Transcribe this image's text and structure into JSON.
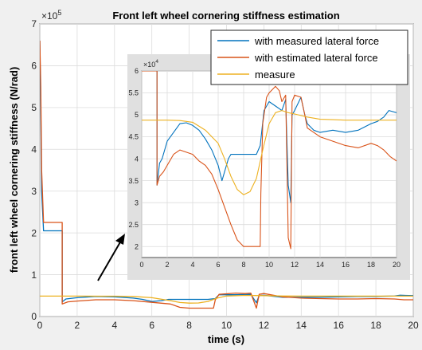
{
  "chart_data": [
    {
      "type": "line",
      "title": "Front left wheel cornering stiffness estimation",
      "xlabel": "time (s)",
      "ylabel": "front left wheel cornering stiffness (N/rad)",
      "xlim": [
        0,
        20
      ],
      "ylim": [
        0,
        700000
      ],
      "y_exponent_label": "×10^5",
      "x_ticks": [
        "0",
        "2",
        "4",
        "6",
        "8",
        "10",
        "12",
        "14",
        "16",
        "18",
        "20"
      ],
      "y_ticks": [
        "0",
        "1",
        "2",
        "3",
        "4",
        "5",
        "6",
        "7"
      ],
      "grid": true,
      "legend_position": "top-right",
      "series": [
        {
          "name": "with measured lateral force",
          "color": "#0072bd",
          "points": [
            [
              0,
              660000
            ],
            [
              0.05,
              500000
            ],
            [
              0.1,
              300000
            ],
            [
              0.2,
              205000
            ],
            [
              1.2,
              205000
            ],
            [
              1.2,
              35000
            ],
            [
              1.4,
              42000
            ],
            [
              2,
              45000
            ],
            [
              3,
              48000
            ],
            [
              4,
              47000
            ],
            [
              5,
              44000
            ],
            [
              5.5,
              41000
            ],
            [
              6,
              36000
            ],
            [
              6.5,
              38000
            ],
            [
              6.9,
              41000
            ],
            [
              7.2,
              41000
            ],
            [
              9,
              41000
            ],
            [
              9.4,
              43000
            ],
            [
              9.6,
              52000
            ],
            [
              10.5,
              52000
            ],
            [
              11.3,
              53000
            ],
            [
              11.6,
              33000
            ],
            [
              11.75,
              50000
            ],
            [
              12,
              51000
            ],
            [
              13,
              46000
            ],
            [
              14,
              46000
            ],
            [
              15,
              46000
            ],
            [
              16,
              47000
            ],
            [
              17,
              48000
            ],
            [
              18,
              48000
            ],
            [
              19,
              49000
            ],
            [
              19.3,
              51000
            ],
            [
              20,
              50000
            ]
          ]
        },
        {
          "name": "with estimated lateral force",
          "color": "#d95319",
          "points": [
            [
              0,
              660000
            ],
            [
              0.05,
              550000
            ],
            [
              0.1,
              350000
            ],
            [
              0.2,
              225000
            ],
            [
              1.2,
              225000
            ],
            [
              1.2,
              30000
            ],
            [
              1.5,
              35000
            ],
            [
              2,
              37000
            ],
            [
              3,
              40000
            ],
            [
              4,
              40000
            ],
            [
              5,
              38000
            ],
            [
              6,
              34000
            ],
            [
              7,
              30000
            ],
            [
              7.5,
              22000
            ],
            [
              8,
              20000
            ],
            [
              9.3,
              20000
            ],
            [
              9.4,
              40000
            ],
            [
              9.6,
              53000
            ],
            [
              10.5,
              56000
            ],
            [
              11,
              55000
            ],
            [
              11.3,
              56000
            ],
            [
              11.6,
              20000
            ],
            [
              11.75,
              53000
            ],
            [
              12,
              55000
            ],
            [
              13,
              47000
            ],
            [
              14,
              44000
            ],
            [
              15,
              43000
            ],
            [
              16,
              42000
            ],
            [
              17,
              42000
            ],
            [
              18,
              43000
            ],
            [
              19,
              42000
            ],
            [
              19.5,
              40000
            ],
            [
              20,
              40000
            ]
          ]
        },
        {
          "name": "measure",
          "color": "#edb120",
          "points": [
            [
              0,
              48800
            ],
            [
              2,
              48800
            ],
            [
              4,
              48600
            ],
            [
              5,
              48000
            ],
            [
              6,
              45000
            ],
            [
              7,
              38000
            ],
            [
              7.5,
              33500
            ],
            [
              8,
              32000
            ],
            [
              8.5,
              32500
            ],
            [
              9,
              36000
            ],
            [
              9.5,
              44000
            ],
            [
              10,
              49000
            ],
            [
              11,
              50500
            ],
            [
              12,
              50000
            ],
            [
              13,
              49000
            ],
            [
              14,
              48800
            ],
            [
              16,
              48800
            ],
            [
              18,
              48800
            ],
            [
              20,
              48800
            ]
          ]
        }
      ]
    },
    {
      "type": "line",
      "title": "",
      "xlim": [
        0,
        20
      ],
      "ylim": [
        17500,
        60000
      ],
      "y_exponent_label": "×10^4",
      "x_ticks": [
        "0",
        "2",
        "4",
        "6",
        "8",
        "10",
        "12",
        "14",
        "16",
        "18",
        "20"
      ],
      "y_ticks": [
        "2",
        "2.5",
        "3",
        "3.5",
        "4",
        "4.5",
        "5",
        "5.5",
        "6"
      ],
      "series": [
        {
          "color": "#0072bd",
          "points": [
            [
              0,
              60000
            ],
            [
              1.2,
              60000
            ],
            [
              1.2,
              34000
            ],
            [
              1.4,
              39000
            ],
            [
              1.6,
              40000
            ],
            [
              2,
              44000
            ],
            [
              2.5,
              46000
            ],
            [
              3,
              48000
            ],
            [
              3.5,
              48200
            ],
            [
              4,
              47600
            ],
            [
              4.5,
              46500
            ],
            [
              5,
              44500
            ],
            [
              5.5,
              42000
            ],
            [
              6,
              38500
            ],
            [
              6.3,
              35000
            ],
            [
              6.5,
              37000
            ],
            [
              6.8,
              40000
            ],
            [
              7,
              41000
            ],
            [
              9,
              41000
            ],
            [
              9.3,
              43000
            ],
            [
              9.6,
              51000
            ],
            [
              10,
              53000
            ],
            [
              10.5,
              52000
            ],
            [
              11,
              51000
            ],
            [
              11.3,
              53500
            ],
            [
              11.5,
              34000
            ],
            [
              11.7,
              30000
            ],
            [
              11.8,
              50000
            ],
            [
              12,
              51000
            ],
            [
              12.5,
              54000
            ],
            [
              12.8,
              50000
            ],
            [
              13,
              48000
            ],
            [
              13.5,
              46500
            ],
            [
              14,
              46000
            ],
            [
              15,
              46500
            ],
            [
              16,
              46000
            ],
            [
              17,
              46500
            ],
            [
              18,
              48000
            ],
            [
              18.5,
              48500
            ],
            [
              19,
              49500
            ],
            [
              19.4,
              51000
            ],
            [
              20,
              50500
            ]
          ]
        },
        {
          "color": "#d95319",
          "points": [
            [
              0,
              60000
            ],
            [
              1.2,
              60000
            ],
            [
              1.2,
              34000
            ],
            [
              1.4,
              36000
            ],
            [
              1.7,
              37000
            ],
            [
              2,
              38500
            ],
            [
              2.5,
              41000
            ],
            [
              3,
              42000
            ],
            [
              3.5,
              41500
            ],
            [
              4,
              41000
            ],
            [
              4.5,
              39500
            ],
            [
              5,
              38500
            ],
            [
              5.5,
              36500
            ],
            [
              6,
              33000
            ],
            [
              6.5,
              29000
            ],
            [
              7,
              25000
            ],
            [
              7.5,
              21500
            ],
            [
              8,
              20000
            ],
            [
              9.3,
              20000
            ],
            [
              9.35,
              32000
            ],
            [
              9.5,
              48000
            ],
            [
              9.8,
              54000
            ],
            [
              10,
              55000
            ],
            [
              10.5,
              56500
            ],
            [
              10.8,
              55500
            ],
            [
              11,
              53000
            ],
            [
              11.3,
              54500
            ],
            [
              11.5,
              22000
            ],
            [
              11.7,
              19500
            ],
            [
              11.8,
              53000
            ],
            [
              12,
              54500
            ],
            [
              12.5,
              54000
            ],
            [
              12.8,
              50000
            ],
            [
              13,
              47000
            ],
            [
              14,
              45000
            ],
            [
              15,
              44000
            ],
            [
              16,
              43000
            ],
            [
              17,
              42500
            ],
            [
              18,
              43500
            ],
            [
              18.5,
              43000
            ],
            [
              19,
              42000
            ],
            [
              19.5,
              40500
            ],
            [
              20,
              39500
            ]
          ]
        },
        {
          "color": "#edb120",
          "points": [
            [
              0,
              48800
            ],
            [
              2,
              48800
            ],
            [
              3,
              48700
            ],
            [
              4,
              48300
            ],
            [
              5,
              46500
            ],
            [
              6,
              43500
            ],
            [
              6.5,
              40000
            ],
            [
              7,
              36000
            ],
            [
              7.5,
              33000
            ],
            [
              8,
              31800
            ],
            [
              8.5,
              32500
            ],
            [
              9,
              35500
            ],
            [
              9.5,
              42000
            ],
            [
              10,
              48000
            ],
            [
              10.5,
              50500
            ],
            [
              11,
              51000
            ],
            [
              11.5,
              50500
            ],
            [
              12,
              50200
            ],
            [
              13,
              49500
            ],
            [
              14,
              49000
            ],
            [
              15,
              48900
            ],
            [
              16,
              48800
            ],
            [
              17,
              48800
            ],
            [
              18,
              48800
            ],
            [
              19,
              48800
            ],
            [
              20,
              48800
            ]
          ]
        }
      ]
    }
  ]
}
